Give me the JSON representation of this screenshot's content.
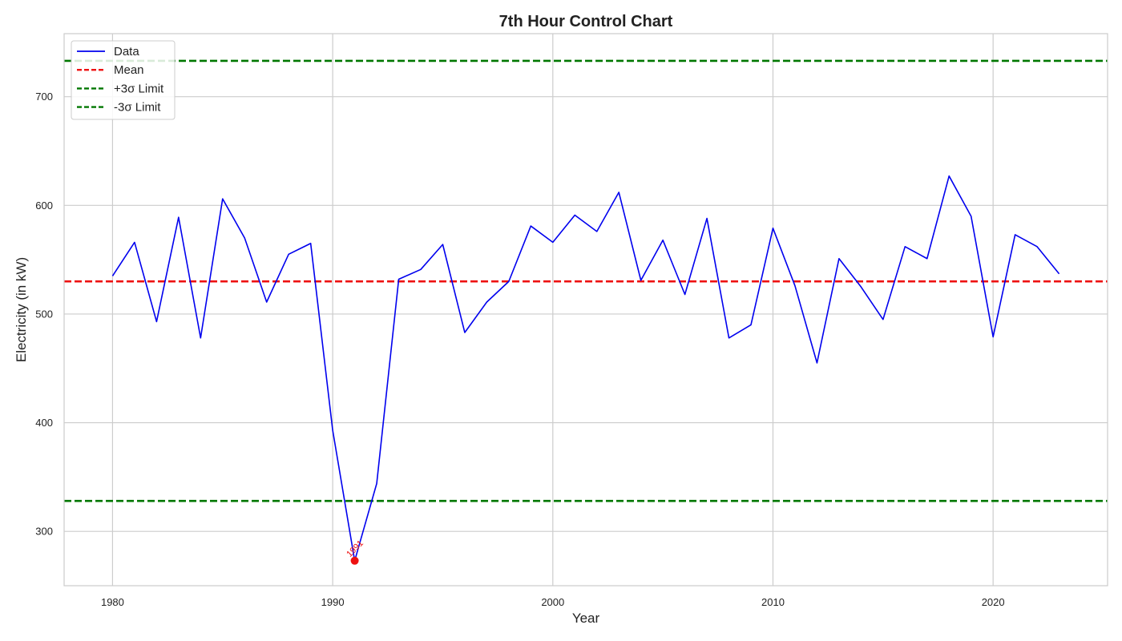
{
  "chart_data": {
    "type": "line",
    "title": "7th Hour Control Chart",
    "xlabel": "Year",
    "ylabel": "Electricity (in kW)",
    "xlim": [
      1977.8,
      2025.2
    ],
    "ylim": [
      250,
      758
    ],
    "x_ticks": [
      1980,
      1990,
      2000,
      2010,
      2020
    ],
    "y_ticks": [
      300,
      400,
      500,
      600,
      700
    ],
    "grid": true,
    "legend_position": "top-left",
    "series": [
      {
        "name": "Data",
        "color": "#0000ee",
        "x": [
          1980,
          1981,
          1982,
          1983,
          1984,
          1985,
          1986,
          1987,
          1988,
          1989,
          1990,
          1991,
          1992,
          1993,
          1994,
          1995,
          1996,
          1997,
          1998,
          1999,
          2000,
          2001,
          2002,
          2003,
          2004,
          2005,
          2006,
          2007,
          2008,
          2009,
          2010,
          2011,
          2012,
          2013,
          2014,
          2015,
          2016,
          2017,
          2018,
          2019,
          2020,
          2021,
          2022,
          2023
        ],
        "values": [
          535,
          566,
          493,
          589,
          478,
          606,
          570,
          511,
          555,
          565,
          393,
          273,
          344,
          532,
          541,
          564,
          483,
          511,
          530,
          581,
          566,
          591,
          576,
          612,
          531,
          568,
          518,
          588,
          478,
          490,
          579,
          526,
          455,
          551,
          525,
          495,
          562,
          551,
          627,
          590,
          479,
          573,
          562,
          537
        ]
      }
    ],
    "reference_lines": [
      {
        "name": "Mean",
        "value": 530,
        "color": "#ee1111",
        "style": "dashed"
      },
      {
        "name": "+3σ Limit",
        "value": 733,
        "color": "#007700",
        "style": "dashed"
      },
      {
        "name": "-3σ Limit",
        "value": 328,
        "color": "#007700",
        "style": "dashed"
      }
    ],
    "outliers": [
      {
        "x": 1991,
        "y": 273,
        "label": "1991",
        "color": "#ee1111"
      }
    ]
  }
}
